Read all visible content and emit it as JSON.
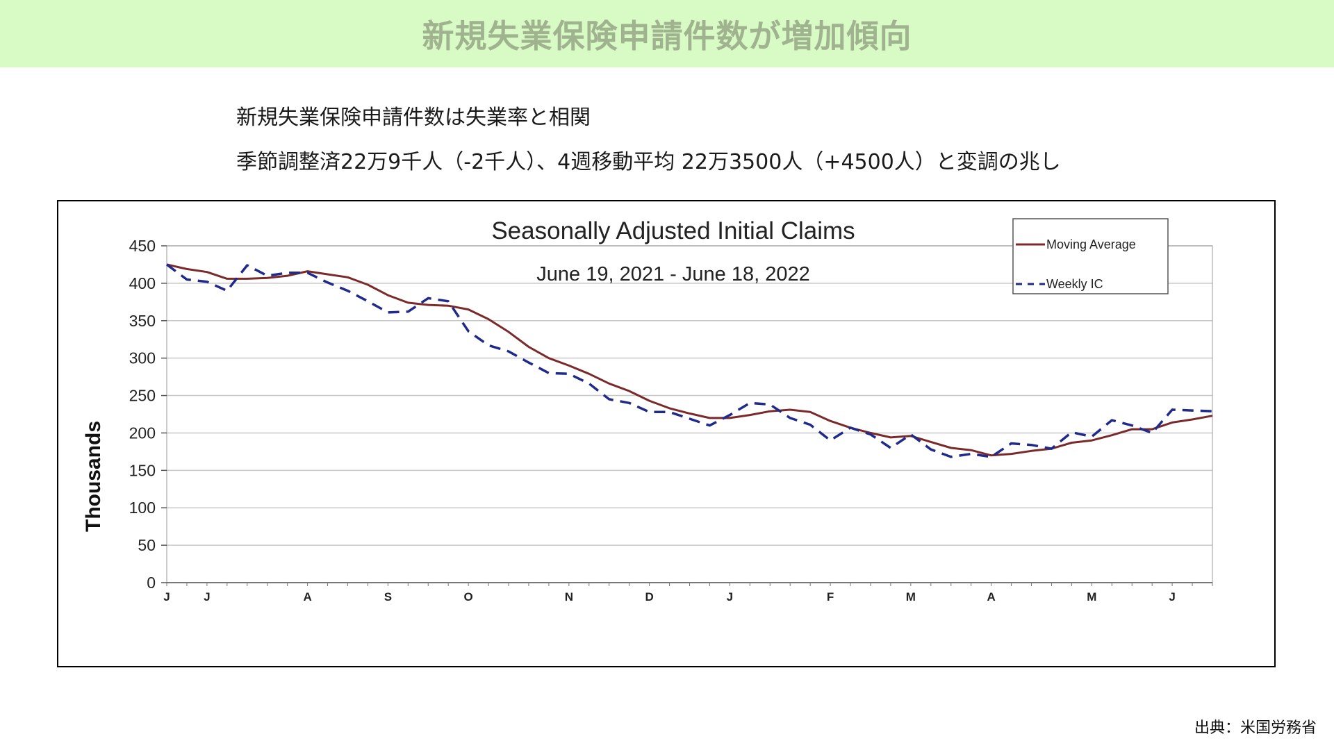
{
  "header": {
    "title": "新規失業保険申請件数が増加傾向"
  },
  "intro": {
    "line1": "新規失業保険申請件数は失業率と相関",
    "line2": "季節調整済22万9千人（-2千人）、4週移動平均 22万3500人（+4500人）と変調の兆し"
  },
  "source": "出典：米国労務省",
  "colors": {
    "banner_bg": "#d8fac4",
    "moving_average": "#7a2a2a",
    "weekly_ic": "#1f2a8a",
    "grid": "#c8c8c8"
  },
  "chart_data": {
    "type": "line",
    "title": "Seasonally Adjusted Initial Claims",
    "subtitle": "June 19, 2021 - June 18, 2022",
    "ylabel": "Thousands",
    "xlabel": "",
    "ylim": [
      0,
      450
    ],
    "yticks": [
      0,
      50,
      100,
      150,
      200,
      250,
      300,
      350,
      400,
      450
    ],
    "grid": true,
    "legend_position": "top-right",
    "x_ticks": [
      {
        "label": "J",
        "date": "2021-06-19"
      },
      {
        "label": "J",
        "date": "2021-07-03"
      },
      {
        "label": "A",
        "date": "2021-08-07"
      },
      {
        "label": "S",
        "date": "2021-09-04"
      },
      {
        "label": "O",
        "date": "2021-10-02"
      },
      {
        "label": "N",
        "date": "2021-11-06"
      },
      {
        "label": "D",
        "date": "2021-12-04"
      },
      {
        "label": "J",
        "date": "2022-01-01"
      },
      {
        "label": "F",
        "date": "2022-02-05"
      },
      {
        "label": "M",
        "date": "2022-03-05"
      },
      {
        "label": "A",
        "date": "2022-04-02"
      },
      {
        "label": "M",
        "date": "2022-05-07"
      },
      {
        "label": "J",
        "date": "2022-06-04"
      }
    ],
    "x": [
      "2021-06-19",
      "2021-06-26",
      "2021-07-03",
      "2021-07-10",
      "2021-07-17",
      "2021-07-24",
      "2021-07-31",
      "2021-08-07",
      "2021-08-14",
      "2021-08-21",
      "2021-08-28",
      "2021-09-04",
      "2021-09-11",
      "2021-09-18",
      "2021-09-25",
      "2021-10-02",
      "2021-10-09",
      "2021-10-16",
      "2021-10-23",
      "2021-10-30",
      "2021-11-06",
      "2021-11-13",
      "2021-11-20",
      "2021-11-27",
      "2021-12-04",
      "2021-12-11",
      "2021-12-18",
      "2021-12-25",
      "2022-01-01",
      "2022-01-08",
      "2022-01-15",
      "2022-01-22",
      "2022-01-29",
      "2022-02-05",
      "2022-02-12",
      "2022-02-19",
      "2022-02-26",
      "2022-03-05",
      "2022-03-12",
      "2022-03-19",
      "2022-03-26",
      "2022-04-02",
      "2022-04-09",
      "2022-04-16",
      "2022-04-23",
      "2022-04-30",
      "2022-05-07",
      "2022-05-14",
      "2022-05-21",
      "2022-05-28",
      "2022-06-04",
      "2022-06-11",
      "2022-06-18"
    ],
    "series": [
      {
        "name": "Moving Average",
        "style": "solid",
        "color": "#7a2a2a",
        "values": [
          425,
          419,
          415,
          406,
          406,
          407,
          410,
          416,
          412,
          408,
          398,
          384,
          374,
          371,
          370,
          365,
          352,
          335,
          315,
          300,
          290,
          279,
          266,
          256,
          243,
          233,
          226,
          220,
          220,
          224,
          229,
          231,
          228,
          216,
          207,
          200,
          194,
          196,
          188,
          180,
          177,
          170,
          172,
          176,
          179,
          187,
          190,
          197,
          205,
          205,
          214,
          218,
          223
        ]
      },
      {
        "name": "Weekly IC",
        "style": "dashed",
        "color": "#1f2a8a",
        "values": [
          425,
          405,
          402,
          390,
          424,
          410,
          414,
          414,
          401,
          390,
          376,
          361,
          362,
          380,
          376,
          336,
          317,
          309,
          294,
          280,
          279,
          266,
          245,
          240,
          228,
          228,
          219,
          210,
          224,
          240,
          238,
          220,
          211,
          190,
          207,
          198,
          180,
          198,
          178,
          168,
          172,
          168,
          186,
          184,
          179,
          201,
          195,
          217,
          210,
          200,
          231,
          230,
          229
        ]
      }
    ]
  }
}
